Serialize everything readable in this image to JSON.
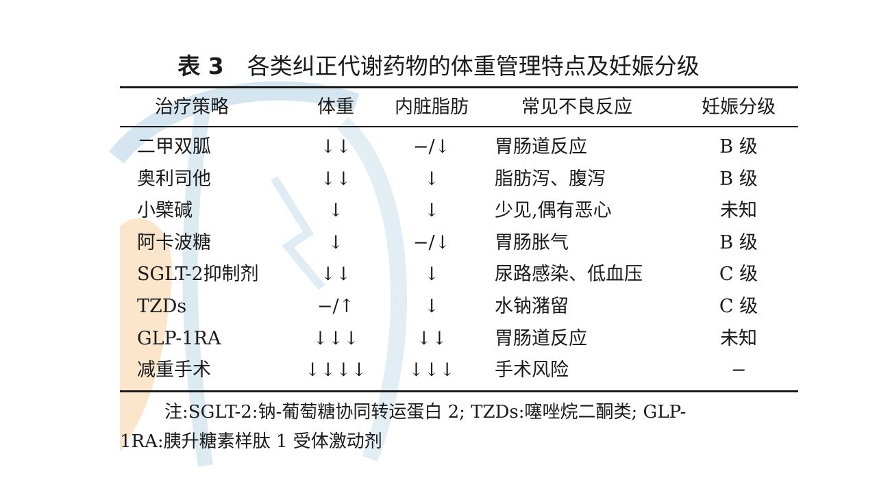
{
  "title": {
    "label": "表 3",
    "text": "各类纠正代谢药物的体重管理特点及妊娠分级"
  },
  "table": {
    "headers": [
      "治疗策略",
      "体重",
      "内脏脂肪",
      "常见不良反应",
      "妊娠分级"
    ],
    "rows": [
      [
        "二甲双胍",
        "↓↓",
        "−/↓",
        "胃肠道反应",
        "B 级"
      ],
      [
        "奥利司他",
        "↓↓",
        "↓",
        "脂肪泻、腹泻",
        "B 级"
      ],
      [
        "小檗碱",
        "↓",
        "↓",
        "少见,偶有恶心",
        "未知"
      ],
      [
        "阿卡波糖",
        "↓",
        "−/↓",
        "胃肠胀气",
        "B 级"
      ],
      [
        "SGLT-2抑制剂",
        "↓↓",
        "↓",
        "尿路感染、低血压",
        "C 级"
      ],
      [
        "TZDs",
        "−/↑",
        "↓",
        "水钠潴留",
        "C 级"
      ],
      [
        "GLP-1RA",
        "↓↓↓",
        "↓↓",
        "胃肠道反应",
        "未知"
      ],
      [
        "减重手术",
        "↓↓↓↓",
        "↓↓↓",
        "手术风险",
        "−"
      ]
    ]
  },
  "note": {
    "line1": "注:SGLT-2:钠-葡萄糖协同转运蛋白 2; TZDs:噻唑烷二酮类; GLP-",
    "line2": "1RA:胰升糖素样肽 1 受体激动剂"
  },
  "colors": {
    "text": "#1a1a1a",
    "watermark_blue": "#d6e6f0",
    "watermark_orange": "#fbe6cc"
  }
}
